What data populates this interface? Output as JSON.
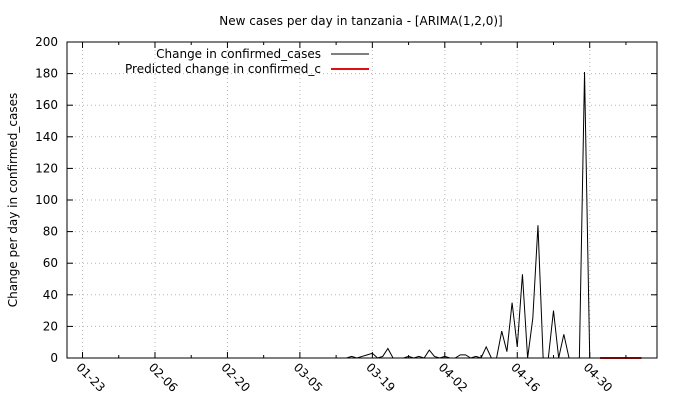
{
  "chart_data": {
    "type": "line",
    "title": "New cases per day in tanzania -  [ARIMA(1,2,0)]",
    "xlabel": "",
    "ylabel": "Change per day in confirmed_cases",
    "ylim": [
      0,
      200
    ],
    "yticks": [
      0,
      20,
      40,
      60,
      80,
      100,
      120,
      140,
      160,
      180,
      200
    ],
    "xlim": [
      "2020-01-20",
      "2020-05-13"
    ],
    "xticks": [
      "01-23",
      "02-06",
      "02-20",
      "03-05",
      "03-19",
      "04-02",
      "04-16",
      "04-30"
    ],
    "xtick_dates": [
      "2020-01-23",
      "2020-02-06",
      "2020-02-20",
      "2020-03-05",
      "2020-03-19",
      "2020-04-02",
      "2020-04-16",
      "2020-04-30"
    ],
    "grid": true,
    "legend_position": "top-left",
    "series": [
      {
        "name": "Change in confirmed_cases",
        "color": "#000000",
        "x": [
          "2020-03-14",
          "2020-03-15",
          "2020-03-16",
          "2020-03-17",
          "2020-03-18",
          "2020-03-19",
          "2020-03-20",
          "2020-03-21",
          "2020-03-22",
          "2020-03-23",
          "2020-03-24",
          "2020-03-25",
          "2020-03-26",
          "2020-03-27",
          "2020-03-28",
          "2020-03-29",
          "2020-03-30",
          "2020-03-31",
          "2020-04-01",
          "2020-04-02",
          "2020-04-03",
          "2020-04-04",
          "2020-04-05",
          "2020-04-06",
          "2020-04-07",
          "2020-04-08",
          "2020-04-09",
          "2020-04-10",
          "2020-04-11",
          "2020-04-12",
          "2020-04-13",
          "2020-04-14",
          "2020-04-15",
          "2020-04-16",
          "2020-04-17",
          "2020-04-18",
          "2020-04-19",
          "2020-04-20",
          "2020-04-21",
          "2020-04-22",
          "2020-04-23",
          "2020-04-24",
          "2020-04-25",
          "2020-04-26",
          "2020-04-27",
          "2020-04-28",
          "2020-04-29",
          "2020-04-30"
        ],
        "y": [
          0,
          1,
          0,
          1,
          2,
          3,
          0,
          1,
          6,
          0,
          0,
          0,
          1,
          0,
          1,
          0,
          5,
          1,
          0,
          1,
          0,
          0,
          2,
          2,
          0,
          1,
          0,
          7,
          0,
          0,
          17,
          4,
          35,
          7,
          53,
          0,
          25,
          84,
          0,
          0,
          30,
          0,
          15,
          0,
          0,
          0,
          181,
          0
        ]
      },
      {
        "name": "Predicted change in confirmed_c",
        "color": "#e01010",
        "x": [
          "2020-05-02",
          "2020-05-03",
          "2020-05-04",
          "2020-05-05",
          "2020-05-06",
          "2020-05-07",
          "2020-05-08",
          "2020-05-09",
          "2020-05-10"
        ],
        "y": [
          0,
          0,
          0,
          0,
          0,
          0,
          0,
          0,
          0
        ]
      }
    ]
  }
}
